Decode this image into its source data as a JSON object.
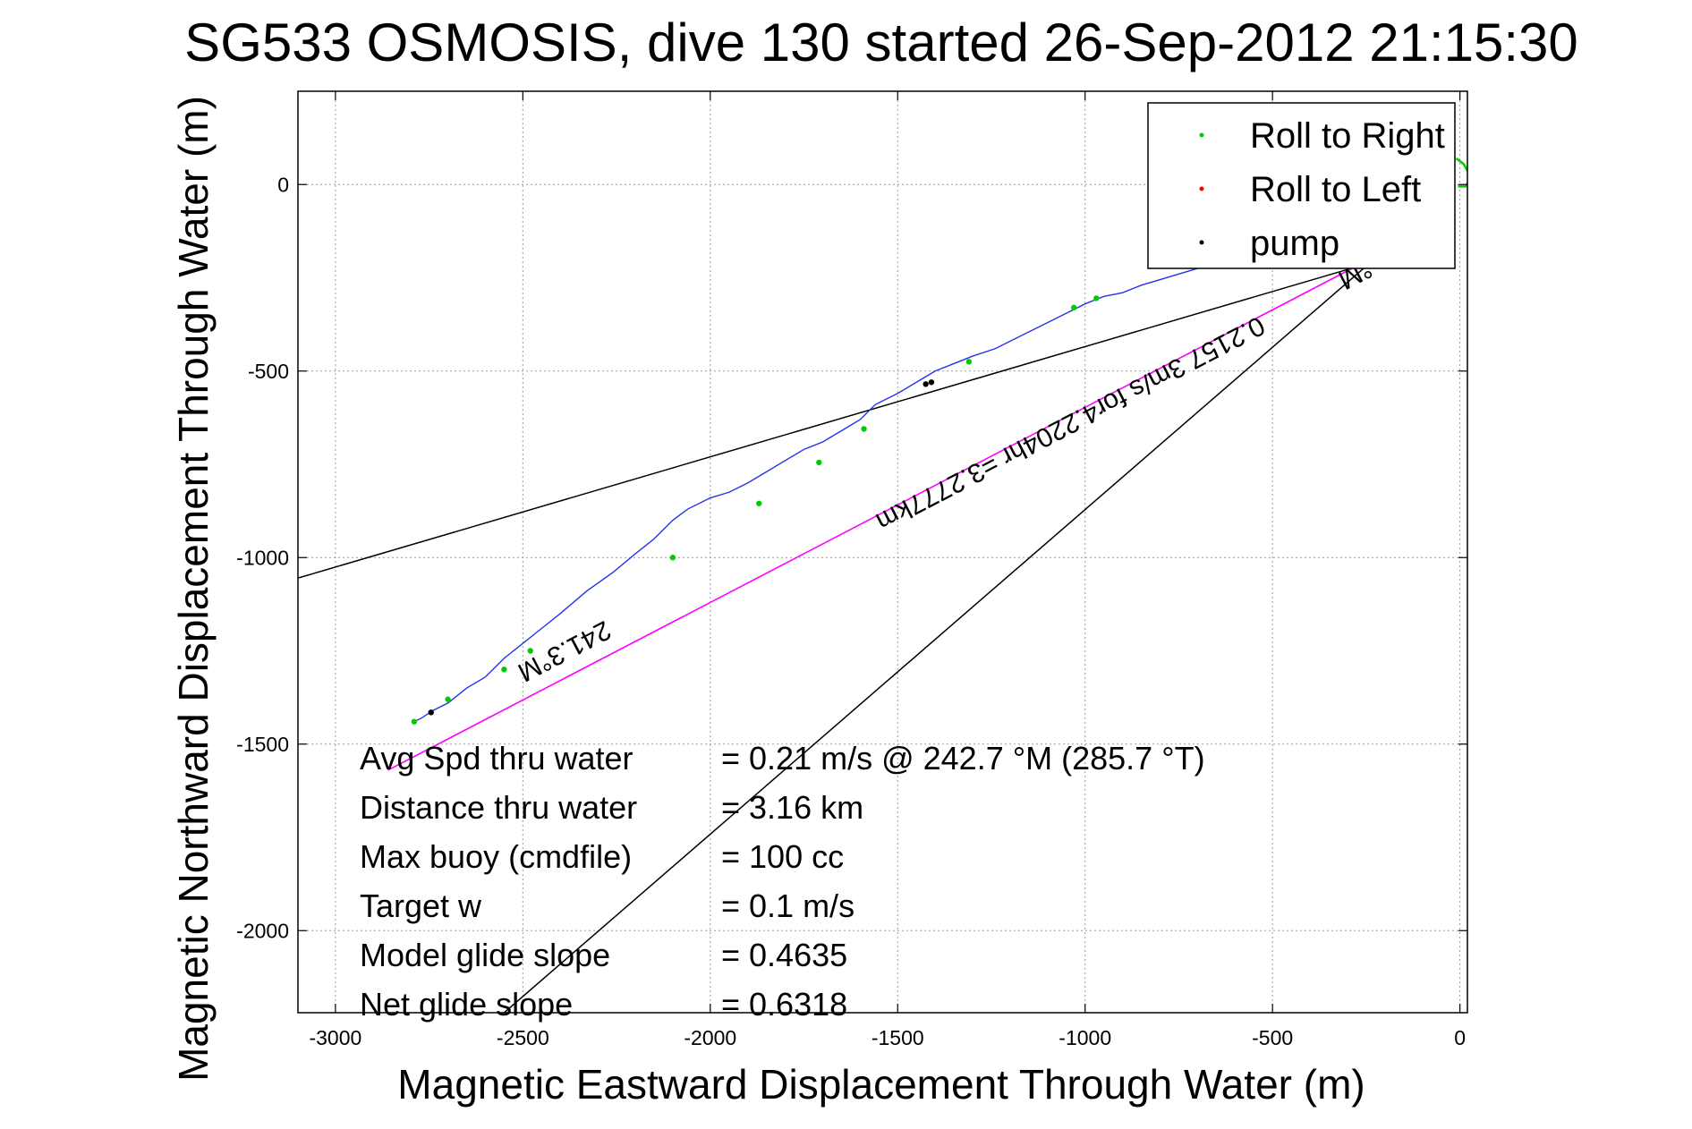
{
  "chart_data": {
    "type": "line",
    "title": "SG533 OSMOSIS, dive 130 started 26-Sep-2012 21:15:30",
    "xlabel": "Magnetic Eastward Displacement Through Water (m)",
    "ylabel": "Magnetic Northward Displacement Through Water (m)",
    "xlim": [
      -3100,
      20
    ],
    "ylim": [
      -2220,
      250
    ],
    "xticks": [
      -3000,
      -2500,
      -2000,
      -1500,
      -1000,
      -500,
      0
    ],
    "yticks": [
      0,
      -500,
      -1000,
      -1500,
      -2000
    ],
    "xtick_labels": [
      "-3000",
      "-2500",
      "-2000",
      "-1500",
      "-1000",
      "-500",
      "0"
    ],
    "ytick_labels": [
      "0",
      "-500",
      "-1000",
      "-1500",
      "-2000"
    ],
    "grid": true,
    "legend_position": "top-right",
    "legend": [
      {
        "label": "Roll to Right",
        "color": "#00cc00"
      },
      {
        "label": "Roll to Left",
        "color": "#ff0000"
      },
      {
        "label": "pump",
        "color": "#000000"
      }
    ],
    "series": [
      {
        "kind": "track",
        "color": "#2233ee",
        "x": [
          -2790,
          -2770,
          -2740,
          -2700,
          -2650,
          -2600,
          -2550,
          -2500,
          -2450,
          -2400,
          -2330,
          -2260,
          -2200,
          -2150,
          -2100,
          -2060,
          -2000,
          -1950,
          -1900,
          -1850,
          -1800,
          -1750,
          -1700,
          -1650,
          -1600,
          -1560,
          -1500,
          -1450,
          -1400,
          -1350,
          -1300,
          -1240,
          -1180,
          -1120,
          -1060,
          -1000,
          -950,
          -900,
          -850,
          -800,
          -750,
          -700,
          -650,
          -600,
          -550,
          -500,
          -450,
          -400,
          -350,
          -300,
          -240
        ],
        "y": [
          -1440,
          -1430,
          -1410,
          -1390,
          -1350,
          -1320,
          -1270,
          -1230,
          -1190,
          -1150,
          -1090,
          -1040,
          -990,
          -950,
          -900,
          -870,
          -840,
          -825,
          -800,
          -770,
          -740,
          -710,
          -690,
          -660,
          -630,
          -590,
          -560,
          -530,
          -500,
          -480,
          -460,
          -440,
          -410,
          -380,
          -350,
          -320,
          -300,
          -290,
          -270,
          -255,
          -240,
          -225,
          -210,
          -195,
          -180,
          -160,
          -145,
          -130,
          -115,
          -100,
          -70
        ]
      },
      {
        "kind": "rhumb-line",
        "color": "#ff00ff",
        "x": [
          -2860,
          -240
        ],
        "y": [
          -1570,
          -200
        ]
      }
    ],
    "points": {
      "roll_to_right": {
        "color": "#00cc00",
        "x": [
          -2790,
          -2700,
          -2550,
          -2480,
          -2100,
          -1870,
          -1710,
          -1590,
          -1310,
          -1030,
          -970,
          -400,
          -380
        ],
        "y": [
          -1440,
          -1380,
          -1300,
          -1250,
          -1000,
          -855,
          -745,
          -655,
          -475,
          -330,
          -305,
          -105,
          -95
        ]
      },
      "roll_to_left": {
        "color": "#ff0000",
        "x": [],
        "y": []
      },
      "pump": {
        "color": "#000000",
        "x": [
          -2745,
          -1425,
          -1410
        ],
        "y": [
          -1415,
          -535,
          -530
        ]
      },
      "curl": {
        "color": "#00cc00",
        "x": [
          -10,
          10,
          30,
          15,
          -5
        ],
        "y": [
          70,
          55,
          20,
          -5,
          -5
        ]
      }
    },
    "reference_lines": [
      {
        "x": [
          -3100,
          -240
        ],
        "y": [
          -1055,
          -210
        ],
        "color": "#000000"
      },
      {
        "x": [
          -2550,
          -240
        ],
        "y": [
          -2220,
          -210
        ],
        "color": "#000000"
      }
    ],
    "segment_labels": [
      {
        "text": "241.3°M",
        "x": -2400,
        "y": -1230
      },
      {
        "text": "0.2157 3m/s for4.2204hr =3.2777km",
        "x": -1050,
        "y": -620
      },
      {
        "text": "°M",
        "x": -290,
        "y": -220
      }
    ],
    "annotations": [
      {
        "label": "Avg Spd thru water",
        "value": "=  0.21 m/s @ 242.7 °M (285.7 °T)"
      },
      {
        "label": "Distance thru water",
        "value": "=  3.16 km"
      },
      {
        "label": "Max buoy (cmdfile)",
        "value": "= 100 cc"
      },
      {
        "label": "Target w",
        "value": "= 0.1 m/s"
      },
      {
        "label": "Model glide slope",
        "value": "= 0.4635"
      },
      {
        "label": "Net glide slope",
        "value": "= 0.6318"
      }
    ]
  }
}
